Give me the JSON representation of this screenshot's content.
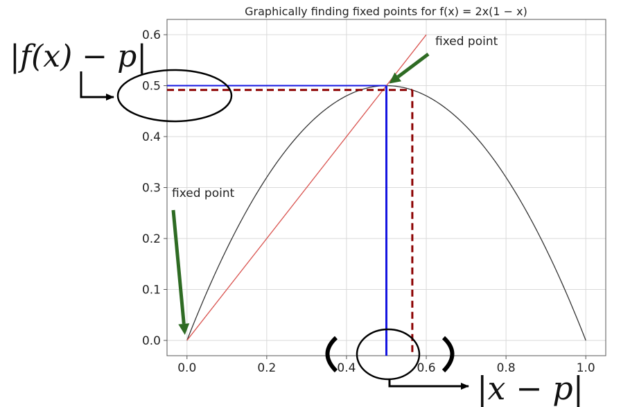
{
  "chart_data": {
    "type": "line",
    "title": "Graphically finding fixed points for f(x) = 2x(1 − x)",
    "xlabel": "",
    "ylabel": "",
    "xlim": [
      -0.05,
      1.05
    ],
    "ylim": [
      -0.03,
      0.63
    ],
    "grid": true,
    "xticks": [
      "0.0",
      "0.2",
      "0.4",
      "0.6",
      "0.8",
      "1.0"
    ],
    "yticks": [
      "0.0",
      "0.1",
      "0.2",
      "0.3",
      "0.4",
      "0.5",
      "0.6"
    ],
    "series": [
      {
        "color": "#333333",
        "function": "2x(1-x)",
        "x_range": [
          0,
          1
        ]
      },
      {
        "color": "#d9534f",
        "x": [
          0,
          0.6
        ],
        "y": [
          0,
          0.6
        ]
      }
    ],
    "guides": {
      "p": 0.5,
      "x_near": 0.565,
      "f_near": 0.4916
    },
    "annotations": [
      {
        "text": "fixed point",
        "at": [
          0,
          0
        ]
      },
      {
        "text": "fixed point",
        "at": [
          0.5,
          0.5
        ]
      }
    ],
    "overlay_labels": {
      "f_minus_p": "|f(x) − p|",
      "x_minus_p": "|x − p|"
    },
    "colors": {
      "grid": "#d9d9d9",
      "blue": "#1414e0",
      "dashed": "#8b0000",
      "arrow_green": "#2e6b23",
      "pointer": "#000000"
    }
  }
}
